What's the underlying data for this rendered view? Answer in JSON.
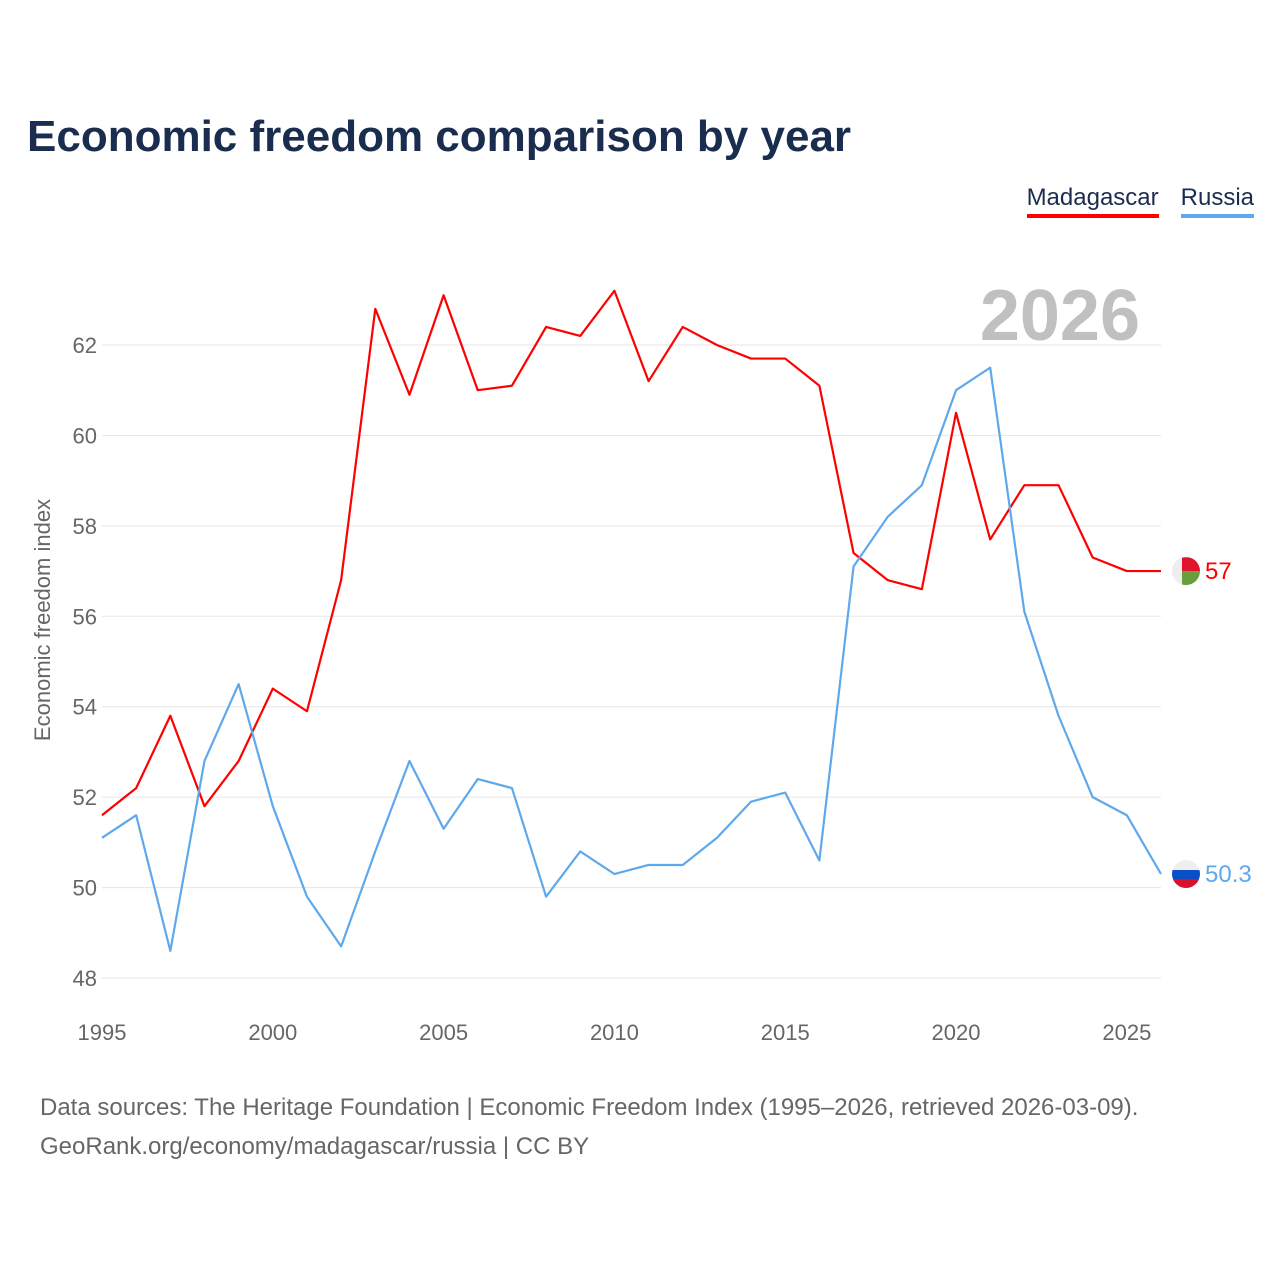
{
  "title": "Economic freedom comparison by year",
  "footer": {
    "line1": "Data sources: The Heritage Foundation | Economic Freedom Index (1995–2026, retrieved 2026-03-09).",
    "line2": "GeoRank.org/economy/madagascar/russia | CC BY"
  },
  "chart_data": {
    "type": "line",
    "title": "Economic freedom comparison by year",
    "ylabel": "Economic freedom index",
    "xlabel": "",
    "year_watermark": "2026",
    "xlim": [
      1995,
      2026
    ],
    "ylim": [
      47.4,
      63.6
    ],
    "xticks": [
      1995,
      2000,
      2005,
      2010,
      2015,
      2020,
      2025
    ],
    "yticks": [
      48,
      50,
      52,
      54,
      56,
      58,
      60,
      62
    ],
    "grid": true,
    "legend_position": "top-right",
    "x": [
      1995,
      1996,
      1997,
      1998,
      1999,
      2000,
      2001,
      2002,
      2003,
      2004,
      2005,
      2006,
      2007,
      2008,
      2009,
      2010,
      2011,
      2012,
      2013,
      2014,
      2015,
      2016,
      2017,
      2018,
      2019,
      2020,
      2021,
      2022,
      2023,
      2024,
      2025,
      2026
    ],
    "series": [
      {
        "name": "Madagascar",
        "color": "#ff0000",
        "end_label": "57",
        "values": [
          51.6,
          52.2,
          53.8,
          51.8,
          52.8,
          54.4,
          53.9,
          56.8,
          62.8,
          60.9,
          63.1,
          61.0,
          61.1,
          62.4,
          62.2,
          63.2,
          61.2,
          62.4,
          62.0,
          61.7,
          61.7,
          61.1,
          57.4,
          56.8,
          56.6,
          60.5,
          57.7,
          58.9,
          58.9,
          57.3,
          57.0,
          57.0
        ]
      },
      {
        "name": "Russia",
        "color": "#5fa8eb",
        "end_label": "50.3",
        "values": [
          51.1,
          51.6,
          48.6,
          52.8,
          54.5,
          51.8,
          49.8,
          48.7,
          50.8,
          52.8,
          51.3,
          52.4,
          52.2,
          49.8,
          50.8,
          50.3,
          50.5,
          50.5,
          51.1,
          51.9,
          52.1,
          50.6,
          57.1,
          58.2,
          58.9,
          61.0,
          61.5,
          56.1,
          53.8,
          52.0,
          51.6,
          50.3
        ]
      }
    ]
  }
}
